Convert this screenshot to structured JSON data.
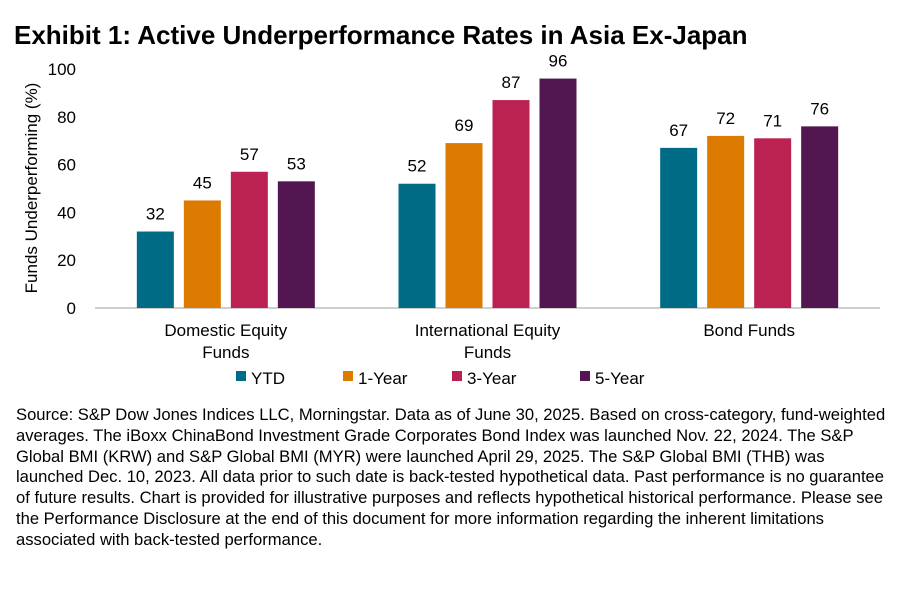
{
  "title": "Exhibit 1: Active Underperformance Rates in Asia Ex-Japan",
  "chart_data": {
    "type": "bar",
    "title": "Exhibit 1: Active Underperformance Rates in Asia Ex-Japan",
    "ylabel": "Funds Underperforming (%)",
    "xlabel": "",
    "ylim": [
      0,
      100
    ],
    "yticks": [
      0,
      20,
      40,
      60,
      80,
      100
    ],
    "grid": false,
    "legend_position": "bottom",
    "categories": [
      [
        "Domestic Equity",
        "Funds"
      ],
      [
        "International Equity",
        "Funds"
      ],
      [
        "Bond Funds"
      ]
    ],
    "series": [
      {
        "name": "YTD",
        "color": "#006b85",
        "values": [
          32,
          52,
          67
        ]
      },
      {
        "name": "1-Year",
        "color": "#dd7a00",
        "values": [
          45,
          69,
          72
        ]
      },
      {
        "name": "3-Year",
        "color": "#bb2252",
        "values": [
          57,
          87,
          71
        ]
      },
      {
        "name": "5-Year",
        "color": "#521751",
        "values": [
          53,
          96,
          76
        ]
      }
    ]
  },
  "source": "Source: S&P Dow Jones Indices LLC, Morningstar.  Data as of June 30, 2025.  Based on cross-category, fund-weighted averages.  The iBoxx ChinaBond Investment Grade Corporates Bond Index was launched Nov. 22, 2024.  The S&P Global BMI (KRW) and S&P Global BMI (MYR) were launched April 29, 2025.  The S&P Global BMI (THB) was launched Dec. 10, 2023.  All data prior to such date is back-tested hypothetical data.  Past performance is no guarantee of future results.  Chart is provided for illustrative purposes and reflects hypothetical historical performance.  Please see the Performance Disclosure at the end of this document for more information regarding the inherent limitations associated with back-tested performance."
}
